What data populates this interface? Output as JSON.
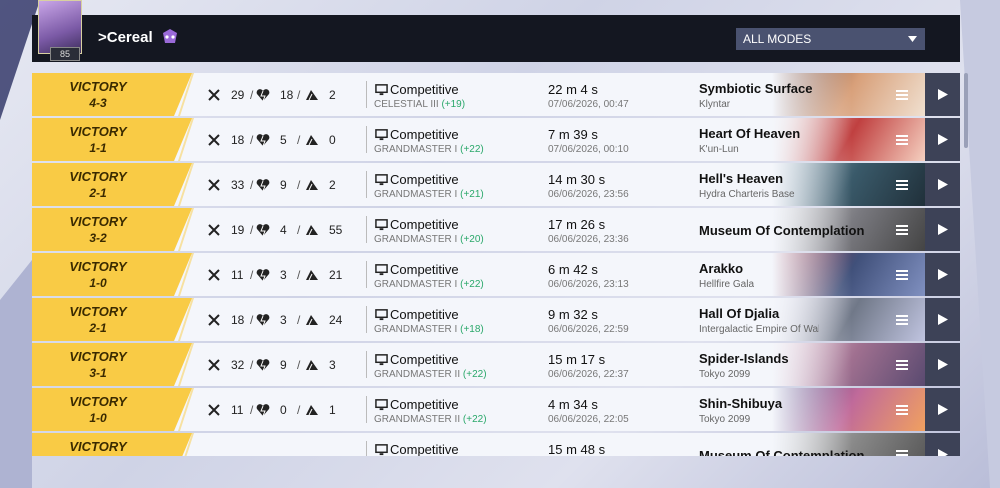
{
  "header": {
    "level": "85",
    "player_name": ">Cereal",
    "mode_filter": "ALL MODES"
  },
  "matches": [
    {
      "result": "VICTORY",
      "score": "4-3",
      "kills": 29,
      "deaths": 18,
      "assists": 2,
      "mode": "Competitive",
      "rank": "CELESTIAL III",
      "rank_change": "(+19)",
      "duration": "22 m 4 s",
      "date": "07/06/2026, 00:47",
      "map": "Symbiotic Surface",
      "region": "Klyntar"
    },
    {
      "result": "VICTORY",
      "score": "1-1",
      "kills": 18,
      "deaths": 5,
      "assists": 0,
      "mode": "Competitive",
      "rank": "GRANDMASTER I",
      "rank_change": "(+22)",
      "duration": "7 m 39 s",
      "date": "07/06/2026, 00:10",
      "map": "Heart Of Heaven",
      "region": "K'un-Lun"
    },
    {
      "result": "VICTORY",
      "score": "2-1",
      "kills": 33,
      "deaths": 9,
      "assists": 2,
      "mode": "Competitive",
      "rank": "GRANDMASTER I",
      "rank_change": "(+21)",
      "duration": "14 m 30 s",
      "date": "06/06/2026, 23:56",
      "map": "Hell's Heaven",
      "region": "Hydra Charteris Base"
    },
    {
      "result": "VICTORY",
      "score": "3-2",
      "kills": 19,
      "deaths": 4,
      "assists": 55,
      "mode": "Competitive",
      "rank": "GRANDMASTER I",
      "rank_change": "(+20)",
      "duration": "17 m 26 s",
      "date": "06/06/2026, 23:36",
      "map": "Museum Of Contemplation"
    },
    {
      "result": "VICTORY",
      "score": "1-0",
      "kills": 11,
      "deaths": 3,
      "assists": 21,
      "mode": "Competitive",
      "rank": "GRANDMASTER I",
      "rank_change": "(+22)",
      "duration": "6 m 42 s",
      "date": "06/06/2026, 23:13",
      "map": "Arakko",
      "region": "Hellfire Gala"
    },
    {
      "result": "VICTORY",
      "score": "2-1",
      "kills": 18,
      "deaths": 3,
      "assists": 24,
      "mode": "Competitive",
      "rank": "GRANDMASTER I",
      "rank_change": "(+18)",
      "duration": "9 m 32 s",
      "date": "06/06/2026, 22:59",
      "map": "Hall Of Djalia",
      "region": "Intergalactic Empire Of Waka"
    },
    {
      "result": "VICTORY",
      "score": "3-1",
      "kills": 32,
      "deaths": 9,
      "assists": 3,
      "mode": "Competitive",
      "rank": "GRANDMASTER II",
      "rank_change": "(+22)",
      "duration": "15 m 17 s",
      "date": "06/06/2026, 22:37",
      "map": "Spider-Islands",
      "region": "Tokyo 2099"
    },
    {
      "result": "VICTORY",
      "score": "1-0",
      "kills": 11,
      "deaths": 0,
      "assists": 1,
      "mode": "Competitive",
      "rank": "GRANDMASTER II",
      "rank_change": "(+22)",
      "duration": "4 m 34 s",
      "date": "06/06/2026, 22:05",
      "map": "Shin-Shibuya",
      "region": "Tokyo 2099"
    },
    {
      "result": "VICTORY",
      "mode": "Competitive",
      "duration": "15 m 48 s",
      "map": "Museum Of Contemplation"
    }
  ]
}
